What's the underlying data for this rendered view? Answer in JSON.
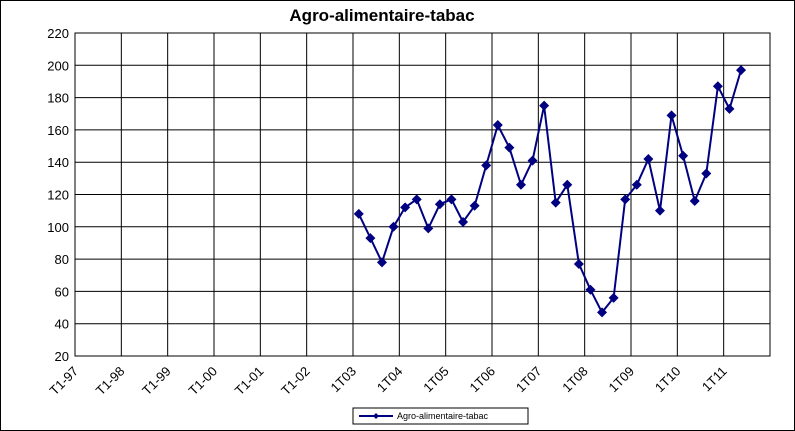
{
  "chart_data": {
    "type": "line",
    "title": "Agro-alimentaire-tabac",
    "categories": [
      "T1-97",
      null,
      null,
      null,
      "T1-98",
      null,
      null,
      null,
      "T1-99",
      null,
      null,
      null,
      "T1-00",
      null,
      null,
      null,
      "T1-01",
      null,
      null,
      null,
      "T1-02",
      null,
      null,
      null,
      "1T03",
      null,
      null,
      null,
      "1T04",
      null,
      null,
      null,
      "1T05",
      null,
      null,
      null,
      "1T06",
      null,
      null,
      null,
      "1T07",
      null,
      null,
      null,
      "1T08",
      null,
      null,
      null,
      "1T09",
      null,
      null,
      null,
      "1T10",
      null,
      null,
      null,
      "1T11",
      null,
      null,
      null
    ],
    "series": [
      {
        "name": "Agro-alimentaire-tabac",
        "color": "#000080",
        "values": [
          null,
          null,
          null,
          null,
          null,
          null,
          null,
          null,
          null,
          null,
          null,
          null,
          null,
          null,
          null,
          null,
          null,
          null,
          null,
          null,
          null,
          null,
          null,
          null,
          108,
          93,
          78,
          100,
          112,
          117,
          99,
          114,
          117,
          103,
          113,
          138,
          163,
          149,
          126,
          141,
          175,
          115,
          126,
          77,
          61,
          47,
          56,
          117,
          126,
          142,
          110,
          169,
          144,
          116,
          133,
          187,
          173,
          197,
          null,
          null
        ]
      }
    ],
    "ylim": [
      20,
      220
    ],
    "yticks": [
      20,
      40,
      60,
      80,
      100,
      120,
      140,
      160,
      180,
      200,
      220
    ],
    "grid": true,
    "legend": "bottom"
  }
}
